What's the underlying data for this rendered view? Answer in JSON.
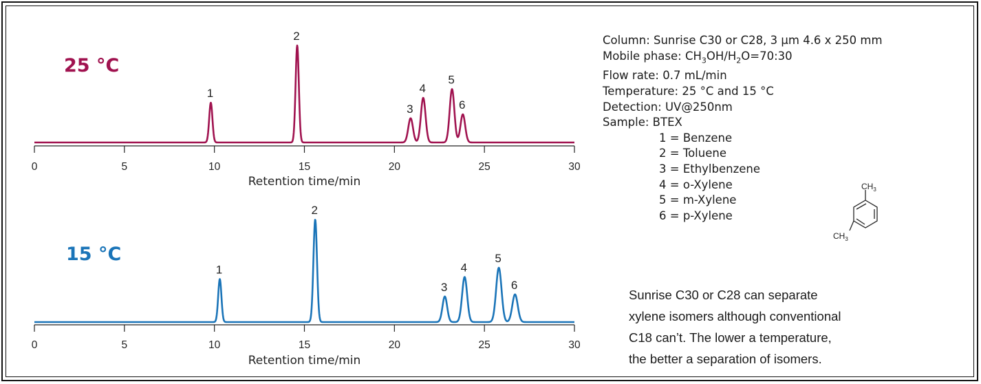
{
  "chart_data": [
    {
      "type": "line",
      "title": "25 °C",
      "color": "#a0124f",
      "xlabel": "Retention time/min",
      "xlim": [
        0,
        30
      ],
      "xticks": [
        0,
        5,
        10,
        15,
        20,
        25,
        30
      ],
      "peaks": [
        {
          "label": "1",
          "x": 9.8,
          "height": 0.41,
          "width": 0.09
        },
        {
          "label": "2",
          "x": 14.6,
          "height": 1.0,
          "width": 0.09
        },
        {
          "label": "3",
          "x": 20.9,
          "height": 0.25,
          "width": 0.13
        },
        {
          "label": "4",
          "x": 21.6,
          "height": 0.46,
          "width": 0.13
        },
        {
          "label": "5",
          "x": 23.2,
          "height": 0.55,
          "width": 0.13
        },
        {
          "label": "6",
          "x": 23.8,
          "height": 0.29,
          "width": 0.13
        }
      ]
    },
    {
      "type": "line",
      "title": "15 °C",
      "color": "#1a74b8",
      "xlabel": "Retention time/min",
      "xlim": [
        0,
        30
      ],
      "xticks": [
        0,
        5,
        10,
        15,
        20,
        25,
        30
      ],
      "peaks": [
        {
          "label": "1",
          "x": 10.3,
          "height": 0.42,
          "width": 0.09
        },
        {
          "label": "2",
          "x": 15.6,
          "height": 1.0,
          "width": 0.1
        },
        {
          "label": "3",
          "x": 22.8,
          "height": 0.25,
          "width": 0.13
        },
        {
          "label": "4",
          "x": 23.9,
          "height": 0.44,
          "width": 0.14
        },
        {
          "label": "5",
          "x": 25.8,
          "height": 0.53,
          "width": 0.15
        },
        {
          "label": "6",
          "x": 26.7,
          "height": 0.27,
          "width": 0.15
        }
      ]
    }
  ],
  "conditions": {
    "column": "Column: Sunrise C30 or C28, 3 µm  4.6 x 250 mm",
    "mobile_phase_prefix": "Mobile phase: CH",
    "mobile_phase_sub1": "3",
    "mobile_phase_mid": "OH/H",
    "mobile_phase_sub2": "2",
    "mobile_phase_suffix": "O=70:30",
    "flow_rate": "Flow rate: 0.7 mL/min",
    "temperature": "Temperature: 25 °C and 15 °C",
    "detection": "Detection: UV@250nm",
    "sample": "Sample: BTEX",
    "compounds": [
      "1 = Benzene",
      "2 = Toluene",
      "3 = Ethylbenzene",
      "4 = o-Xylene",
      "5 = m-Xylene",
      "6 = p-Xylene"
    ]
  },
  "structure": {
    "group_top": "CH",
    "group_top_sub": "3",
    "group_bottom": "CH",
    "group_bottom_sub": "3"
  },
  "note": [
    "Sunrise C30 or C28 can separate",
    "xylene isomers although conventional",
    "C18 can’t. The lower a temperature,",
    "the better a separation of isomers."
  ]
}
